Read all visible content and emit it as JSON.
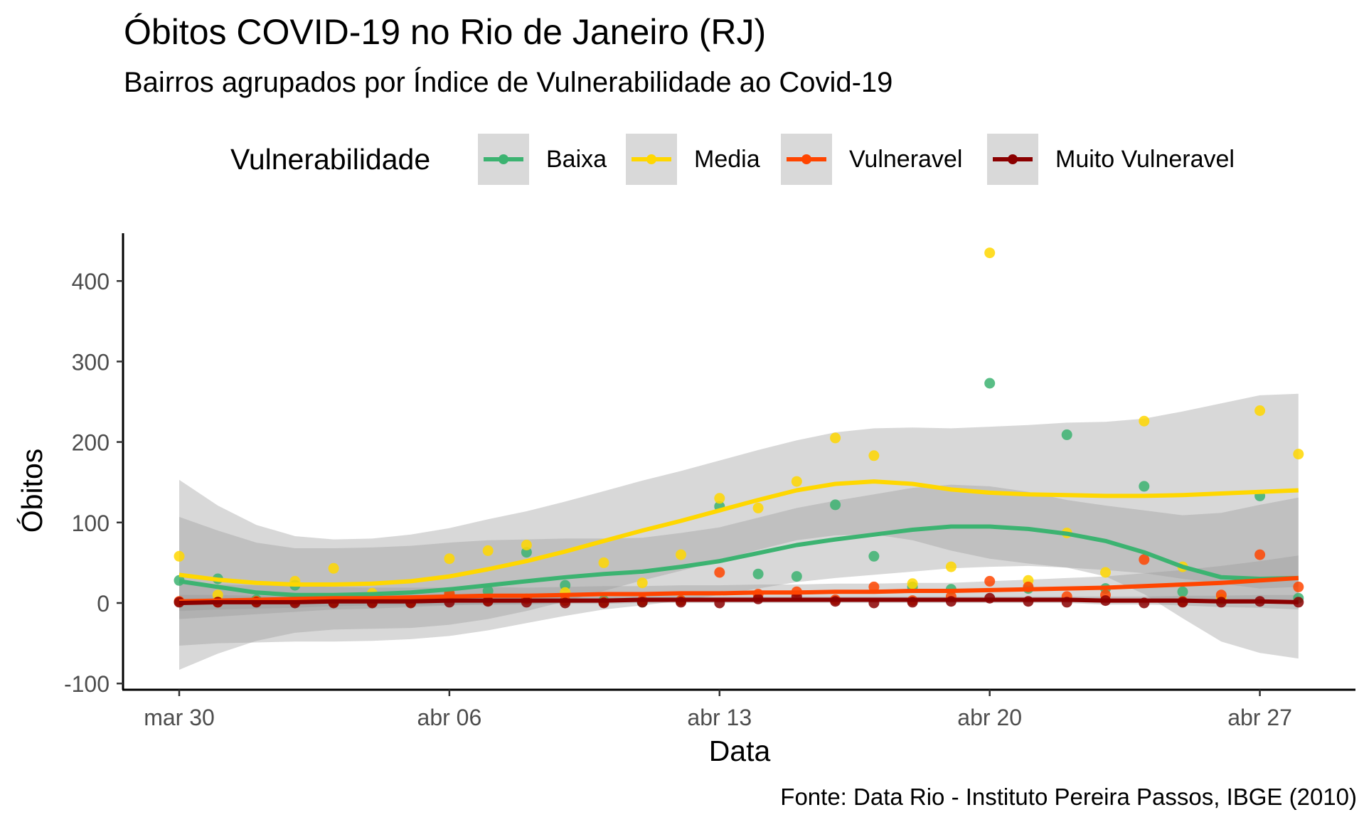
{
  "chart_data": {
    "type": "scatter",
    "title": "Óbitos COVID-19 no Rio de Janeiro (RJ)",
    "subtitle": "Bairros agrupados por Índice de Vulnerabilidade ao Covid-19",
    "xlabel": "Data",
    "ylabel": "Óbitos",
    "caption": "Fonte: Data Rio - Instituto Pereira Passos, IBGE (2010)",
    "legend_title": "Vulnerabilidade",
    "legend_position": "top",
    "grid": false,
    "xlim": [
      "2020-03-28",
      "2020-04-30"
    ],
    "ylim": [
      -105,
      460
    ],
    "x_ticks": [
      {
        "label": "mar 30",
        "day": 0
      },
      {
        "label": "abr 06",
        "day": 7
      },
      {
        "label": "abr 13",
        "day": 14
      },
      {
        "label": "abr 20",
        "day": 21
      },
      {
        "label": "abr 27",
        "day": 28
      }
    ],
    "y_ticks": [
      -100,
      0,
      100,
      200,
      300,
      400
    ],
    "dates": [
      "2020-03-30",
      "2020-03-31",
      "2020-04-01",
      "2020-04-02",
      "2020-04-03",
      "2020-04-04",
      "2020-04-05",
      "2020-04-06",
      "2020-04-07",
      "2020-04-08",
      "2020-04-09",
      "2020-04-10",
      "2020-04-11",
      "2020-04-12",
      "2020-04-13",
      "2020-04-14",
      "2020-04-15",
      "2020-04-16",
      "2020-04-17",
      "2020-04-18",
      "2020-04-19",
      "2020-04-20",
      "2020-04-21",
      "2020-04-22",
      "2020-04-23",
      "2020-04-24",
      "2020-04-25",
      "2020-04-26",
      "2020-04-27",
      "2020-04-28"
    ],
    "series": [
      {
        "name": "Baixa",
        "color": "#3cb371",
        "points": [
          28,
          30,
          4,
          22,
          1,
          2,
          2,
          10,
          15,
          63,
          22,
          3,
          1,
          3,
          120,
          36,
          33,
          122,
          58,
          20,
          17,
          273,
          18,
          209,
          18,
          145,
          14,
          4,
          133,
          6
        ],
        "smooth": [
          27,
          20,
          13,
          10,
          10,
          11,
          13,
          17,
          22,
          27,
          32,
          36,
          39,
          45,
          52,
          62,
          72,
          79,
          85,
          91,
          95,
          95,
          92,
          86,
          77,
          63,
          45,
          32,
          30,
          31
        ],
        "band": [
          80,
          70,
          62,
          58,
          58,
          58,
          58,
          58,
          56,
          52,
          48,
          44,
          42,
          42,
          42,
          44,
          46,
          48,
          50,
          52,
          52,
          50,
          46,
          42,
          44,
          52,
          64,
          80,
          92,
          100
        ]
      },
      {
        "name": "Media",
        "color": "#ffd700",
        "points": [
          58,
          10,
          2,
          27,
          43,
          12,
          1,
          55,
          65,
          72,
          13,
          50,
          25,
          60,
          130,
          118,
          151,
          205,
          183,
          24,
          45,
          435,
          28,
          87,
          38,
          226,
          45,
          5,
          239,
          185
        ],
        "smooth": [
          35,
          29,
          25,
          23,
          23,
          24,
          27,
          33,
          42,
          52,
          64,
          77,
          90,
          102,
          115,
          128,
          140,
          148,
          151,
          148,
          141,
          137,
          135,
          134,
          133,
          133,
          134,
          136,
          138,
          140
        ],
        "band": [
          118,
          92,
          72,
          60,
          56,
          56,
          58,
          60,
          62,
          62,
          62,
          62,
          62,
          62,
          62,
          62,
          62,
          64,
          66,
          70,
          76,
          82,
          86,
          90,
          92,
          96,
          104,
          112,
          120,
          120
        ]
      },
      {
        "name": "Vulneravel",
        "color": "#ff4500",
        "points": [
          2,
          1,
          2,
          2,
          1,
          1,
          1,
          12,
          3,
          5,
          3,
          1,
          3,
          3,
          38,
          11,
          14,
          4,
          20,
          3,
          8,
          27,
          20,
          8,
          10,
          54,
          2,
          10,
          60,
          20
        ],
        "smooth": [
          2,
          3,
          4,
          5,
          6,
          6,
          7,
          8,
          9,
          9,
          10,
          11,
          11,
          12,
          12,
          13,
          13,
          14,
          14,
          15,
          15,
          16,
          17,
          18,
          19,
          21,
          23,
          25,
          28,
          31
        ],
        "band": [
          22,
          20,
          18,
          16,
          14,
          13,
          12,
          11,
          11,
          10,
          10,
          10,
          10,
          10,
          10,
          10,
          10,
          10,
          10,
          10,
          10,
          11,
          12,
          13,
          14,
          16,
          18,
          21,
          24,
          28
        ]
      },
      {
        "name": "Muito Vulneravel",
        "color": "#8b0000",
        "points": [
          1,
          1,
          1,
          0,
          0,
          0,
          0,
          1,
          2,
          1,
          0,
          0,
          1,
          1,
          0,
          5,
          8,
          2,
          0,
          1,
          2,
          6,
          2,
          1,
          3,
          0,
          1,
          1,
          2,
          1
        ],
        "smooth": [
          0,
          1,
          1,
          1,
          2,
          2,
          2,
          3,
          3,
          3,
          3,
          3,
          4,
          4,
          4,
          4,
          4,
          4,
          4,
          4,
          4,
          4,
          4,
          4,
          3,
          3,
          3,
          2,
          2,
          1
        ],
        "band": [
          10,
          9,
          8,
          7,
          6,
          5,
          5,
          5,
          5,
          5,
          4,
          4,
          4,
          4,
          4,
          4,
          4,
          4,
          4,
          4,
          4,
          4,
          4,
          4,
          5,
          5,
          6,
          7,
          8,
          9
        ]
      }
    ]
  }
}
